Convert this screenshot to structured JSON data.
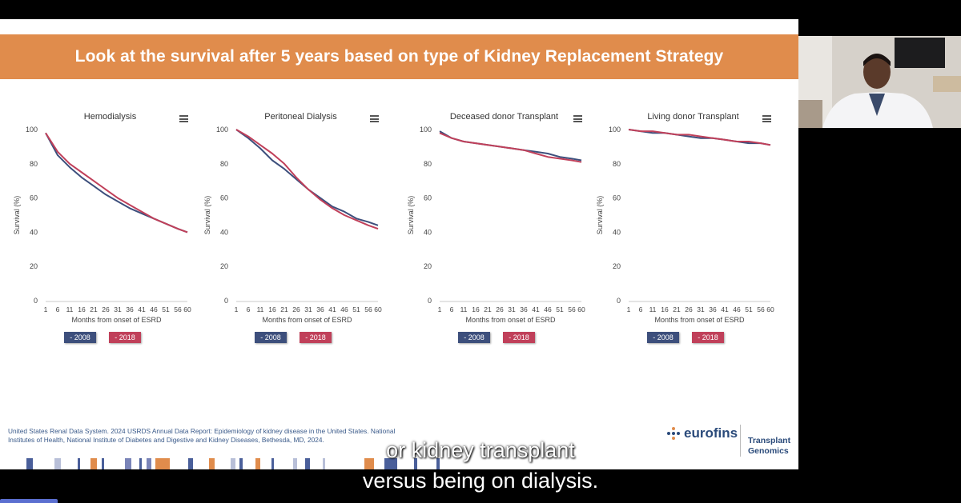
{
  "slide": {
    "title": "Look at the survival after 5 years based on type of Kidney Replacement Strategy",
    "citation": "United States Renal Data System. 2024 USRDS Annual Data Report: Epidemiology of kidney disease in the United States. National Institutes of Health, National Institute of Diabetes and Digestive and Kidney Diseases, Bethesda, MD, 2024.",
    "logo_name": "eurofins",
    "logo_sub_1": "Transplant",
    "logo_sub_2": "Genomics"
  },
  "captions": {
    "line1": "or kidney transplant",
    "line2": "versus being on dialysis."
  },
  "colors": {
    "banner": "#e08c4c",
    "series_2008": "#3d4f7c",
    "series_2018": "#c0405a"
  },
  "icons": {
    "menu": "hamburger-menu-icon",
    "camera": "video-feed"
  },
  "chart_data": [
    {
      "type": "line",
      "title": "Hemodialysis",
      "xlabel": "Months from onset of ESRD",
      "ylabel": "Survival (%)",
      "x_ticks": [
        1,
        6,
        11,
        16,
        21,
        26,
        31,
        36,
        41,
        46,
        51,
        56,
        60
      ],
      "y_ticks": [
        0,
        20,
        40,
        60,
        80,
        100
      ],
      "xlim": [
        1,
        60
      ],
      "ylim": [
        0,
        100
      ],
      "x": [
        1,
        6,
        11,
        16,
        21,
        26,
        31,
        36,
        41,
        46,
        51,
        56,
        60
      ],
      "series": [
        {
          "name": "2008",
          "values": [
            98,
            85,
            78,
            72,
            67,
            62,
            58,
            54,
            51,
            48,
            45,
            42,
            40
          ]
        },
        {
          "name": "2018",
          "values": [
            98,
            87,
            80,
            75,
            70,
            65,
            60,
            56,
            52,
            48,
            45,
            42,
            40
          ]
        }
      ],
      "legend": "bottom"
    },
    {
      "type": "line",
      "title": "Peritoneal Dialysis",
      "xlabel": "Months from onset of ESRD",
      "ylabel": "Survival (%)",
      "x_ticks": [
        1,
        6,
        11,
        16,
        21,
        26,
        31,
        36,
        41,
        46,
        51,
        56,
        60
      ],
      "y_ticks": [
        0,
        20,
        40,
        60,
        80,
        100
      ],
      "xlim": [
        1,
        60
      ],
      "ylim": [
        0,
        100
      ],
      "x": [
        1,
        6,
        11,
        16,
        21,
        26,
        31,
        36,
        41,
        46,
        51,
        56,
        60
      ],
      "series": [
        {
          "name": "2008",
          "values": [
            100,
            95,
            89,
            82,
            77,
            71,
            65,
            60,
            55,
            52,
            48,
            46,
            44
          ]
        },
        {
          "name": "2018",
          "values": [
            100,
            96,
            91,
            86,
            80,
            72,
            65,
            59,
            54,
            50,
            47,
            44,
            42
          ]
        }
      ],
      "legend": "bottom"
    },
    {
      "type": "line",
      "title": "Deceased donor Transplant",
      "xlabel": "Months from onset of ESRD",
      "ylabel": "Survival (%)",
      "x_ticks": [
        1,
        6,
        11,
        16,
        21,
        26,
        31,
        36,
        41,
        46,
        51,
        56,
        60
      ],
      "y_ticks": [
        0,
        20,
        40,
        60,
        80,
        100
      ],
      "xlim": [
        1,
        60
      ],
      "ylim": [
        0,
        100
      ],
      "x": [
        1,
        6,
        11,
        16,
        21,
        26,
        31,
        36,
        41,
        46,
        51,
        56,
        60
      ],
      "series": [
        {
          "name": "2008",
          "values": [
            99,
            95,
            93,
            92,
            91,
            90,
            89,
            88,
            87,
            86,
            84,
            83,
            82
          ]
        },
        {
          "name": "2018",
          "values": [
            98,
            95,
            93,
            92,
            91,
            90,
            89,
            88,
            86,
            84,
            83,
            82,
            81
          ]
        }
      ],
      "legend": "bottom"
    },
    {
      "type": "line",
      "title": "Living donor Transplant",
      "xlabel": "Months from onset of ESRD",
      "ylabel": "Survival (%)",
      "x_ticks": [
        1,
        6,
        11,
        16,
        21,
        26,
        31,
        36,
        41,
        46,
        51,
        56,
        60
      ],
      "y_ticks": [
        0,
        20,
        40,
        60,
        80,
        100
      ],
      "xlim": [
        1,
        60
      ],
      "ylim": [
        0,
        100
      ],
      "x": [
        1,
        6,
        11,
        16,
        21,
        26,
        31,
        36,
        41,
        46,
        51,
        56,
        60
      ],
      "series": [
        {
          "name": "2008",
          "values": [
            100,
            99,
            98,
            98,
            97,
            96,
            95,
            95,
            94,
            93,
            92,
            92,
            91
          ]
        },
        {
          "name": "2018",
          "values": [
            100,
            99,
            99,
            98,
            97,
            97,
            96,
            95,
            94,
            93,
            93,
            92,
            91
          ]
        }
      ],
      "legend": "bottom"
    }
  ],
  "legend_labels": [
    "- 2008",
    "- 2018"
  ]
}
